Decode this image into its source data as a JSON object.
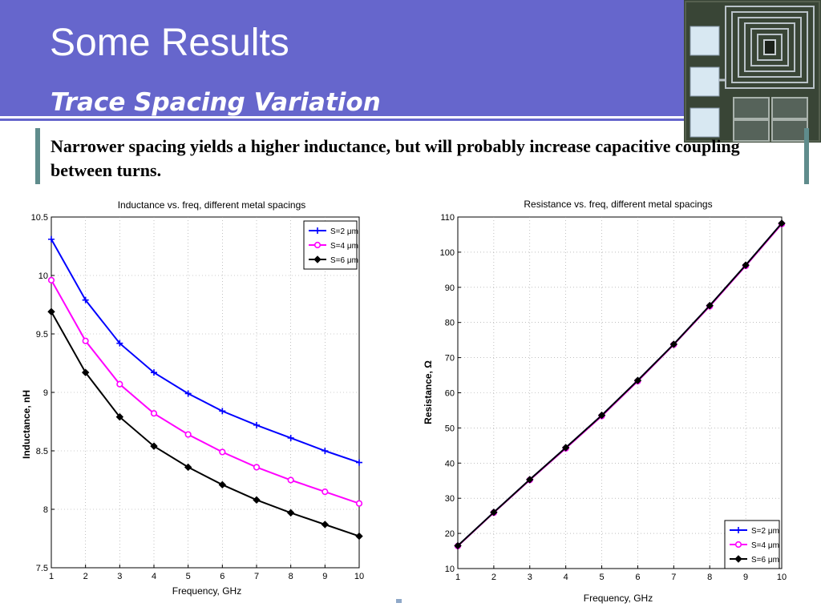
{
  "slide": {
    "title": "Some Results",
    "subtitle": "Trace Spacing Variation",
    "body": "Narrower spacing yields a higher inductance, but will probably increase capacitive coupling between turns."
  },
  "colors": {
    "header_bg": "#6666cc",
    "accent_bar": "#5f8c8c",
    "series_s2": "#0000ff",
    "series_s4": "#ff00ff",
    "series_s6": "#000000"
  },
  "chart_data": [
    {
      "type": "line",
      "title": "Inductance vs. freq, different metal spacings",
      "xlabel": "Frequency, GHz",
      "ylabel": "Inductance, nH",
      "xlim": [
        1,
        10
      ],
      "ylim": [
        7.5,
        10.5
      ],
      "xticks": [
        "1",
        "2",
        "3",
        "4",
        "5",
        "6",
        "7",
        "8",
        "9",
        "10"
      ],
      "yticks": [
        "7.5",
        "8",
        "8.5",
        "9",
        "9.5",
        "10",
        "10.5"
      ],
      "grid": true,
      "legend_position": "top-right",
      "x": [
        1,
        2,
        3,
        4,
        5,
        6,
        7,
        8,
        9,
        10
      ],
      "series": [
        {
          "name": "S=2 μm",
          "marker": "plus",
          "color": "#0000ff",
          "values": [
            10.31,
            9.79,
            9.42,
            9.17,
            8.99,
            8.84,
            8.72,
            8.61,
            8.5,
            8.4
          ]
        },
        {
          "name": "S=4 μm",
          "marker": "circle",
          "color": "#ff00ff",
          "values": [
            9.96,
            9.44,
            9.07,
            8.82,
            8.64,
            8.49,
            8.36,
            8.25,
            8.15,
            8.05
          ]
        },
        {
          "name": "S=6 μm",
          "marker": "diamond",
          "color": "#000000",
          "values": [
            9.69,
            9.17,
            8.79,
            8.54,
            8.36,
            8.21,
            8.08,
            7.97,
            7.87,
            7.77
          ]
        }
      ]
    },
    {
      "type": "line",
      "title": "Resistance vs. freq, different metal spacings",
      "xlabel": "Frequency, GHz",
      "ylabel": "Resistance, Ω",
      "xlim": [
        1,
        10
      ],
      "ylim": [
        10,
        110
      ],
      "xticks": [
        "1",
        "2",
        "3",
        "4",
        "5",
        "6",
        "7",
        "8",
        "9",
        "10"
      ],
      "yticks": [
        "10",
        "20",
        "30",
        "40",
        "50",
        "60",
        "70",
        "80",
        "90",
        "100",
        "110"
      ],
      "grid": true,
      "legend_position": "bottom-right",
      "x": [
        1,
        2,
        3,
        4,
        5,
        6,
        7,
        8,
        9,
        10
      ],
      "series": [
        {
          "name": "S=2 μm",
          "marker": "plus",
          "color": "#0000ff",
          "values": [
            16.5,
            26.0,
            35.3,
            44.4,
            53.6,
            63.5,
            73.8,
            84.8,
            96.3,
            108.2
          ]
        },
        {
          "name": "S=4 μm",
          "marker": "circle",
          "color": "#ff00ff",
          "values": [
            16.4,
            25.9,
            35.2,
            44.2,
            53.4,
            63.3,
            73.7,
            84.6,
            96.1,
            108.0
          ]
        },
        {
          "name": "S=6 μm",
          "marker": "diamond",
          "color": "#000000",
          "values": [
            16.5,
            26.0,
            35.3,
            44.4,
            53.6,
            63.5,
            73.8,
            84.8,
            96.3,
            108.2
          ]
        }
      ]
    }
  ]
}
